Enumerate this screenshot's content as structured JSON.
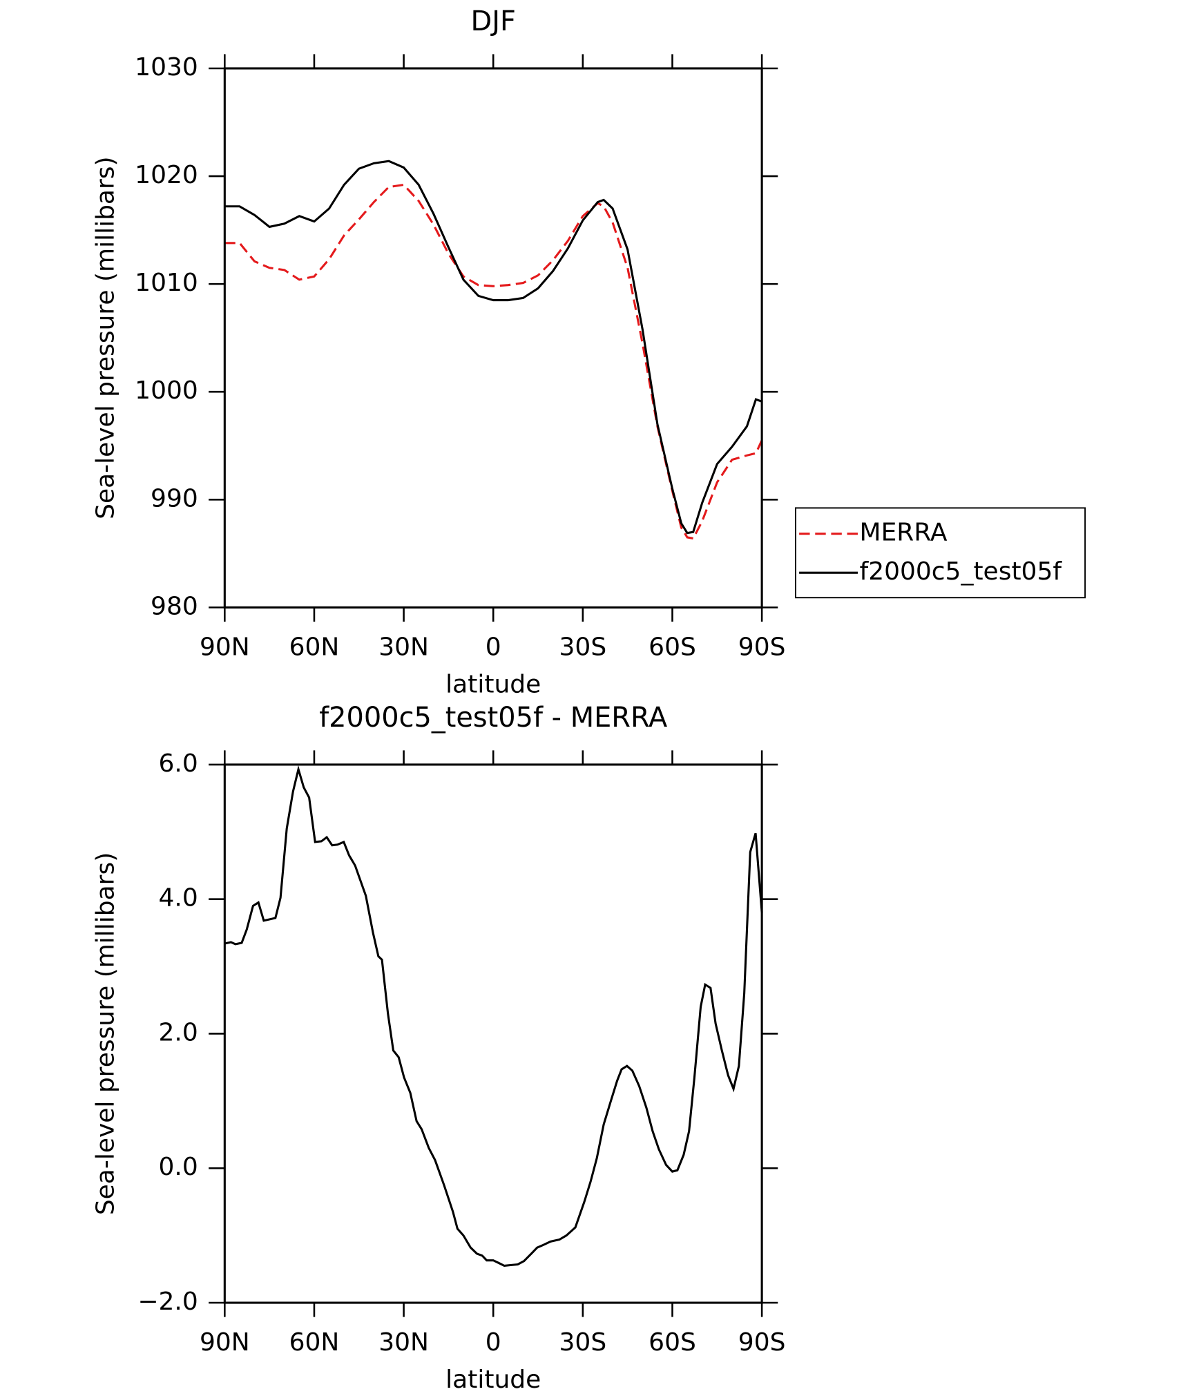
{
  "chart_data": [
    {
      "type": "line",
      "title": "DJF",
      "xlabel": "latitude",
      "ylabel": "Sea-level pressure (millibars)",
      "x": [
        90,
        85,
        80,
        75,
        70,
        65,
        60,
        55,
        50,
        45,
        40,
        35,
        30,
        25,
        20,
        15,
        10,
        5,
        0,
        -5,
        -10,
        -15,
        -20,
        -25,
        -30,
        -35,
        -37,
        -40,
        -45,
        -50,
        -55,
        -60,
        -63,
        -65,
        -67,
        -70,
        -75,
        -80,
        -85,
        -88,
        -90
      ],
      "series": [
        {
          "name": "MERRA",
          "color": "#e41a1c",
          "line_style": "dashed",
          "values": [
            1013.8,
            1013.8,
            1012.1,
            1011.5,
            1011.3,
            1010.4,
            1010.7,
            1012.3,
            1014.5,
            1016,
            1017.6,
            1019,
            1019.2,
            1017.7,
            1015.5,
            1012.8,
            1010.7,
            1009.9,
            1009.8,
            1009.9,
            1010.1,
            1010.8,
            1012.2,
            1014,
            1016.3,
            1017.5,
            1017.2,
            1015.7,
            1011.5,
            1004.5,
            996.8,
            990.8,
            987.4,
            986.5,
            986.4,
            988,
            991.6,
            993.7,
            994.1,
            994.3,
            995.5
          ]
        },
        {
          "name": "f2000c5_test05f",
          "color": "#000000",
          "line_style": "solid",
          "values": [
            1017.2,
            1017.2,
            1016.4,
            1015.3,
            1015.6,
            1016.3,
            1015.8,
            1017,
            1019.2,
            1020.7,
            1021.2,
            1021.4,
            1020.8,
            1019.2,
            1016.5,
            1013.4,
            1010.4,
            1008.9,
            1008.5,
            1008.5,
            1008.7,
            1009.6,
            1011.2,
            1013.3,
            1015.9,
            1017.6,
            1017.8,
            1017,
            1013.2,
            1005.8,
            997,
            991,
            987.8,
            986.9,
            987,
            989.7,
            993.3,
            994.9,
            996.8,
            999.3,
            999.1
          ]
        }
      ],
      "xlim": [
        90,
        -90
      ],
      "xticks": [
        {
          "value": 90,
          "label": "90N"
        },
        {
          "value": 60,
          "label": "60N"
        },
        {
          "value": 30,
          "label": "30N"
        },
        0,
        {
          "value": -30,
          "label": "30S"
        },
        {
          "value": -60,
          "label": "60S"
        },
        {
          "value": -90,
          "label": "90S"
        }
      ],
      "ylim": [
        980,
        1030
      ],
      "yticks": [
        980,
        990,
        1000,
        1010,
        1020,
        1030
      ],
      "legend": "right"
    },
    {
      "type": "line",
      "title": "f2000c5_test05f - MERRA",
      "xlabel": "latitude",
      "ylabel": "Sea-level pressure (millibars)",
      "color": "#000000",
      "x": [
        90,
        87.9,
        86.4,
        84.3,
        82.6,
        80.5,
        78.7,
        76.9,
        73.0,
        71.3,
        69.2,
        67.1,
        65.3,
        63.5,
        61.7,
        59.7,
        57.6,
        55.8,
        54.0,
        52.2,
        50.1,
        48.3,
        46.3,
        42.7,
        40.3,
        38.5,
        37.3,
        35.3,
        33.5,
        31.7,
        29.9,
        27.8,
        25.7,
        24.0,
        21.6,
        19.5,
        16.5,
        13.5,
        12.0,
        10.0,
        7.6,
        5.5,
        3.7,
        2.2,
        0,
        -1.9,
        -3.7,
        -5.8,
        -8.2,
        -10.3,
        -13.2,
        -14.7,
        -16.8,
        -19.2,
        -22.2,
        -24.5,
        -27.5,
        -30.5,
        -32.6,
        -34.7,
        -37.0,
        -39.4,
        -41.5,
        -43.0,
        -44.8,
        -46.6,
        -48.9,
        -51.3,
        -53.4,
        -55.5,
        -57.9,
        -60.0,
        -61.7,
        -63.8,
        -65.6,
        -67.4,
        -69.5,
        -71.0,
        -72.8,
        -74.5,
        -76.6,
        -78.7,
        -80.5,
        -82.3,
        -84.1,
        -86.1,
        -87.9,
        -90
      ],
      "values": [
        3.34,
        3.36,
        3.33,
        3.35,
        3.55,
        3.9,
        3.95,
        3.68,
        3.72,
        4.02,
        5.05,
        5.6,
        5.93,
        5.66,
        5.51,
        4.85,
        4.86,
        4.92,
        4.8,
        4.81,
        4.85,
        4.65,
        4.5,
        4.05,
        3.5,
        3.15,
        3.1,
        2.3,
        1.75,
        1.65,
        1.35,
        1.12,
        0.7,
        0.58,
        0.3,
        0.12,
        -0.25,
        -0.65,
        -0.9,
        -1.0,
        -1.18,
        -1.27,
        -1.3,
        -1.37,
        -1.37,
        -1.41,
        -1.45,
        -1.44,
        -1.43,
        -1.38,
        -1.25,
        -1.18,
        -1.14,
        -1.09,
        -1.06,
        -1.0,
        -0.88,
        -0.5,
        -0.2,
        0.15,
        0.65,
        1.0,
        1.3,
        1.47,
        1.52,
        1.45,
        1.22,
        0.9,
        0.55,
        0.28,
        0.05,
        -0.05,
        -0.03,
        0.2,
        0.55,
        1.35,
        2.4,
        2.73,
        2.68,
        2.15,
        1.75,
        1.38,
        1.18,
        1.52,
        2.6,
        4.7,
        4.98,
        3.8
      ],
      "xlim": [
        90,
        -90
      ],
      "xticks": [
        {
          "value": 90,
          "label": "90N"
        },
        {
          "value": 60,
          "label": "60N"
        },
        {
          "value": 30,
          "label": "30N"
        },
        0,
        {
          "value": -30,
          "label": "30S"
        },
        {
          "value": -60,
          "label": "60S"
        },
        {
          "value": -90,
          "label": "90S"
        }
      ],
      "ylim": [
        -2,
        6
      ],
      "yticks": [
        {
          "value": -2,
          "label": "−2.0"
        },
        {
          "value": 0,
          "label": "0.0"
        },
        {
          "value": 2,
          "label": "2.0"
        },
        {
          "value": 4,
          "label": "4.0"
        },
        {
          "value": 6,
          "label": "6.0"
        }
      ]
    }
  ]
}
